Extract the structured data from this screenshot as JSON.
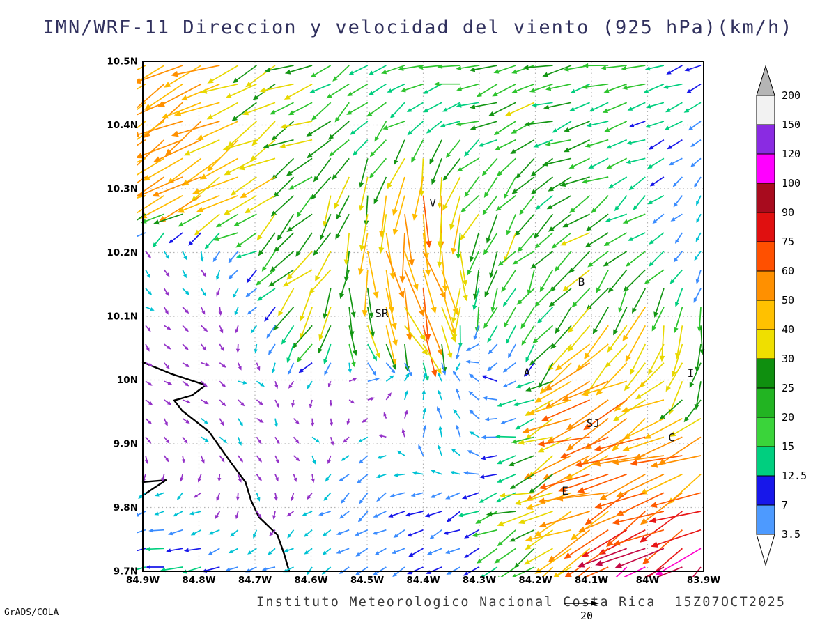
{
  "title": "IMN/WRF-11 Direccion y velocidad del viento (925 hPa)(km/h)",
  "caption": "Instituto Meteorologico Nacional Costa Rica  15Z07OCT2025",
  "credit": "GrADS/COLA",
  "colors": {
    "background": "#ffffff",
    "frame": "#000000",
    "grid": "#b3b3b3",
    "coast": "#000000",
    "title_text": "#31315e",
    "caption_text": "#3a3a3a"
  },
  "chart_data": {
    "type": "vector-field-map",
    "model": "IMN/WRF-11",
    "field": "Direccion y velocidad del viento",
    "level": "925 hPa",
    "units": "km/h",
    "valid_time": "15Z07OCT2025",
    "x_axis": {
      "range_deg_west": [
        84.9,
        83.9
      ],
      "ticks": [
        "84.9W",
        "84.8W",
        "84.7W",
        "84.6W",
        "84.5W",
        "84.4W",
        "84.3W",
        "84.2W",
        "84.1W",
        "84W",
        "83.9W"
      ]
    },
    "y_axis": {
      "range_deg_north": [
        9.7,
        10.5
      ],
      "ticks": [
        "10.5N",
        "10.4N",
        "10.3N",
        "10.2N",
        "10.1N",
        "10N",
        "9.9N",
        "9.8N",
        "9.7N"
      ]
    },
    "colorbar": {
      "labels_top_to_bottom": [
        "200",
        "150",
        "120",
        "100",
        "90",
        "75",
        "60",
        "50",
        "40",
        "30",
        "25",
        "20",
        "15",
        "12.5",
        "7",
        "3.5"
      ],
      "segment_colors_top_to_bottom": [
        "#f2f2f2",
        "#8a2be2",
        "#ff00ff",
        "#a80b1e",
        "#e01010",
        "#ff5000",
        "#ff9000",
        "#ffc100",
        "#efdf00",
        "#0f8f0f",
        "#22b422",
        "#3ad43a",
        "#00cf7f",
        "#1717ea",
        "#4d9aff"
      ],
      "above_color": "#b5b5b5",
      "below_color": "#ffffff"
    },
    "arrow_speed_palette": {
      "thresholds_kmh": [
        4.2,
        7.5,
        12.5,
        15,
        20,
        25,
        30,
        40,
        50,
        60,
        75,
        90,
        98
      ],
      "colors": [
        "#9432c8",
        "#00c2d4",
        "#3a8cff",
        "#1717ea",
        "#00cf7f",
        "#2dc42d",
        "#139513",
        "#e8d800",
        "#ffbb00",
        "#ff9000",
        "#ff5a00",
        "#e81717",
        "#c40844",
        "#ff00cc"
      ]
    },
    "reference_arrow": {
      "value_kmh": 20,
      "label": "20"
    },
    "stations": [
      {
        "label": "V",
        "lon": -84.383,
        "lat": 10.272
      },
      {
        "label": "B",
        "lon": -84.118,
        "lat": 10.148
      },
      {
        "label": "SR",
        "lon": -84.474,
        "lat": 10.099
      },
      {
        "label": "A",
        "lon": -84.215,
        "lat": 10.006
      },
      {
        "label": "SJ",
        "lon": -84.097,
        "lat": 9.926
      },
      {
        "label": "C",
        "lon": -83.957,
        "lat": 9.904
      },
      {
        "label": "E",
        "lon": -84.147,
        "lat": 9.82
      },
      {
        "label": "I",
        "lon": -83.923,
        "lat": 10.005
      }
    ],
    "coastline_lonlat": [
      [
        [
          -84.9,
          10.028
        ],
        [
          -84.85,
          10.01
        ],
        [
          -84.788,
          9.992
        ],
        [
          -84.812,
          9.976
        ],
        [
          -84.844,
          9.968
        ],
        [
          -84.83,
          9.952
        ],
        [
          -84.782,
          9.919
        ],
        [
          -84.745,
          9.873
        ],
        [
          -84.717,
          9.84
        ],
        [
          -84.707,
          9.811
        ],
        [
          -84.693,
          9.785
        ],
        [
          -84.66,
          9.757
        ],
        [
          -84.648,
          9.727
        ],
        [
          -84.639,
          9.7
        ]
      ],
      [
        [
          -84.9,
          9.84
        ],
        [
          -84.859,
          9.843
        ],
        [
          -84.9,
          9.819
        ]
      ]
    ],
    "wind_grid_kmh_uv": {
      "lons": [
        -84.9,
        -84.8,
        -84.7,
        -84.6,
        -84.5,
        -84.4,
        -84.3,
        -84.2,
        -84.1,
        -84.0,
        -83.9
      ],
      "lats": [
        10.5,
        10.4,
        10.3,
        10.2,
        10.1,
        10.0,
        9.9,
        9.8,
        9.7
      ],
      "uv": [
        [
          [
            -35,
            -22
          ],
          [
            -42,
            -25
          ],
          [
            -30,
            -12
          ],
          [
            -22,
            -8
          ],
          [
            -14,
            -9
          ],
          [
            -18,
            -6
          ],
          [
            -22,
            -5
          ],
          [
            -25,
            -6
          ],
          [
            -22,
            -5
          ],
          [
            -18,
            -4
          ],
          [
            -14,
            -5
          ]
        ],
        [
          [
            -45,
            -25
          ],
          [
            -40,
            -22
          ],
          [
            -35,
            -18
          ],
          [
            -25,
            -12
          ],
          [
            -15,
            -14
          ],
          [
            -14,
            -10
          ],
          [
            -18,
            -8
          ],
          [
            -22,
            -8
          ],
          [
            -20,
            -6
          ],
          [
            -16,
            -5
          ],
          [
            -10,
            -6
          ]
        ],
        [
          [
            -38,
            -18
          ],
          [
            -42,
            -20
          ],
          [
            -30,
            -22
          ],
          [
            -14,
            -20
          ],
          [
            -8,
            -30
          ],
          [
            -6,
            -55
          ],
          [
            -12,
            -22
          ],
          [
            -18,
            -16
          ],
          [
            -22,
            -12
          ],
          [
            -12,
            -8
          ],
          [
            -2,
            -5
          ]
        ],
        [
          [
            4,
            -3
          ],
          [
            2,
            -4
          ],
          [
            -12,
            -8
          ],
          [
            -25,
            -22
          ],
          [
            5,
            -38
          ],
          [
            18,
            -42
          ],
          [
            -8,
            -25
          ],
          [
            -14,
            -18
          ],
          [
            -22,
            -15
          ],
          [
            -16,
            -12
          ],
          [
            -2,
            -5
          ]
        ],
        [
          [
            3,
            -2
          ],
          [
            2,
            -3
          ],
          [
            -3,
            -3
          ],
          [
            -18,
            -25
          ],
          [
            8,
            -32
          ],
          [
            16,
            -58
          ],
          [
            -6,
            -16
          ],
          [
            -10,
            -16
          ],
          [
            -14,
            -25
          ],
          [
            -12,
            -34
          ],
          [
            -3,
            -20
          ]
        ],
        [
          [
            2,
            -2
          ],
          [
            3,
            -2
          ],
          [
            3,
            -3
          ],
          [
            -4,
            -3
          ],
          [
            6,
            3
          ],
          [
            2,
            6
          ],
          [
            -8,
            6
          ],
          [
            -14,
            -8
          ],
          [
            -45,
            -30
          ],
          [
            -30,
            -25
          ],
          [
            -5,
            -24
          ]
        ],
        [
          [
            2,
            -3
          ],
          [
            3,
            -3
          ],
          [
            2,
            -3
          ],
          [
            4,
            -3
          ],
          [
            -6,
            -4
          ],
          [
            0,
            8
          ],
          [
            -5,
            5
          ],
          [
            -18,
            -10
          ],
          [
            -55,
            -26
          ],
          [
            -58,
            -20
          ],
          [
            -40,
            -24
          ]
        ],
        [
          [
            -6,
            -2
          ],
          [
            -5,
            -3
          ],
          [
            2,
            -3
          ],
          [
            -4,
            -3
          ],
          [
            -8,
            -6
          ],
          [
            -11,
            -5
          ],
          [
            -13,
            -6
          ],
          [
            -30,
            -10
          ],
          [
            -42,
            -18
          ],
          [
            -50,
            -26
          ],
          [
            -58,
            -30
          ]
        ],
        [
          [
            -20,
            -2
          ],
          [
            -15,
            -1
          ],
          [
            -9,
            -3
          ],
          [
            -4,
            -3
          ],
          [
            -8,
            -5
          ],
          [
            -10,
            -5
          ],
          [
            -13,
            -6
          ],
          [
            -22,
            -12
          ],
          [
            -45,
            -38
          ],
          [
            -82,
            -58
          ],
          [
            -72,
            -48
          ]
        ]
      ]
    }
  }
}
